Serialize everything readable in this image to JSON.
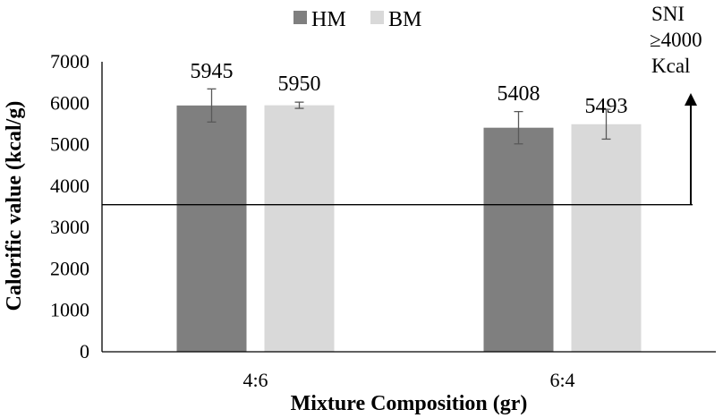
{
  "chart_data": {
    "type": "bar",
    "categories": [
      "4:6",
      "6:4"
    ],
    "series": [
      {
        "name": "HM",
        "values": [
          5945,
          5408
        ],
        "errors": [
          400,
          390
        ],
        "color": "#7f7f7f"
      },
      {
        "name": "BM",
        "values": [
          5950,
          5493
        ],
        "errors": [
          75,
          360
        ],
        "color": "#d9d9d9"
      }
    ],
    "xlabel": "Mixture Composition (gr)",
    "ylabel": "Calorific value (kcal/g)",
    "ylim": [
      0,
      7000
    ],
    "yticks": [
      "0",
      "1000",
      "2000",
      "3000",
      "4000",
      "5000",
      "6000",
      "7000"
    ],
    "grid": false,
    "legend_position": "top",
    "reference_line": {
      "value": 3550
    },
    "annotation": {
      "lines": [
        "SNI",
        "≥4000",
        "Kcal"
      ]
    }
  }
}
